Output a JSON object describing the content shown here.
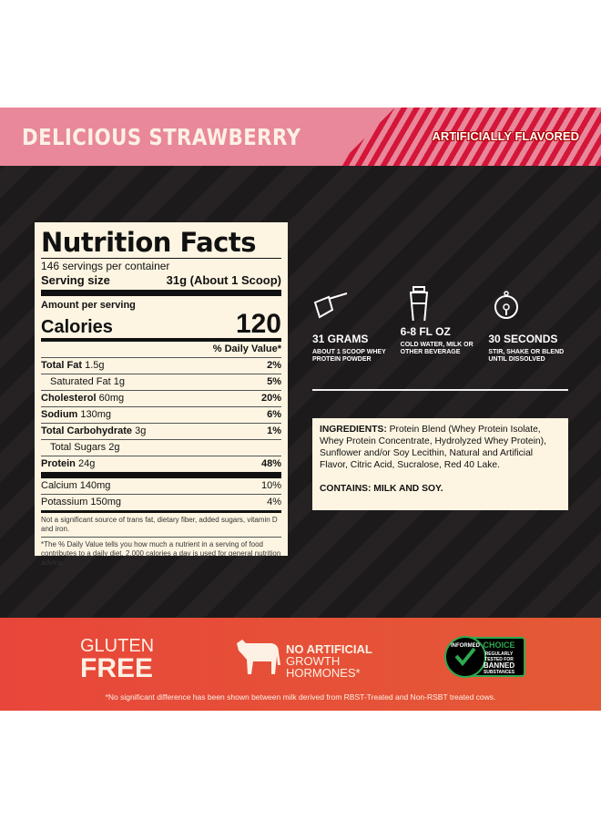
{
  "header": {
    "flavor": "DELICIOUS STRAWBERRY",
    "flavor_note": "ARTIFICIALLY FLAVORED"
  },
  "nutrition": {
    "title": "Nutrition Facts",
    "servings": "146 servings per container",
    "serving_size_label": "Serving size",
    "serving_size_value": "31g (About 1 Scoop)",
    "amount_per_serving": "Amount per serving",
    "calories_label": "Calories",
    "calories_value": "120",
    "dv_header": "% Daily Value*",
    "rows": [
      {
        "name": "Total Fat",
        "amount": "1.5g",
        "dv": "2%",
        "bold": true
      },
      {
        "name": "Saturated Fat",
        "amount": "1g",
        "dv": "5%",
        "bold": false,
        "indent": true
      },
      {
        "name": "Cholesterol",
        "amount": "60mg",
        "dv": "20%",
        "bold": true
      },
      {
        "name": "Sodium",
        "amount": "130mg",
        "dv": "6%",
        "bold": true
      },
      {
        "name": "Total Carbohydrate",
        "amount": "3g",
        "dv": "1%",
        "bold": true
      },
      {
        "name": "Total Sugars",
        "amount": "2g",
        "dv": "",
        "bold": false,
        "indent": true
      },
      {
        "name": "Protein",
        "amount": "24g",
        "dv": "48%",
        "bold": true
      }
    ],
    "minerals": [
      {
        "name": "Calcium 140mg",
        "dv": "10%"
      },
      {
        "name": "Potassium 150mg",
        "dv": "4%"
      }
    ],
    "note1": "Not a significant source of trans fat, dietary fiber, added sugars, vitamin D and iron.",
    "note2": "*The % Daily Value tells you how much a nutrient in a serving of food contributes to a daily diet. 2,000 calories a day is used for general nutrition advice."
  },
  "directions": [
    {
      "icon": "scoop-icon",
      "title": "31 GRAMS",
      "sub": "ABOUT 1 SCOOP WHEY PROTEIN POWDER"
    },
    {
      "icon": "shaker-icon",
      "title": "6-8 FL OZ",
      "sub": "COLD WATER, MILK OR OTHER BEVERAGE"
    },
    {
      "icon": "stopwatch-icon",
      "title": "30 SECONDS",
      "sub": "STIR, SHAKE OR BLEND UNTIL DISSOLVED"
    }
  ],
  "ingredients": {
    "label": "INGREDIENTS:",
    "text": " Protein Blend (Whey Protein Isolate, Whey Protein Concentrate, Hydrolyzed Whey Protein), Sunflower and/or Soy Lecithin, Natural and Artificial Flavor, Citric Acid, Sucralose, Red 40 Lake.",
    "contains": "CONTAINS: MILK AND SOY."
  },
  "badges": {
    "gluten1": "GLUTEN",
    "gluten2": "FREE",
    "nah1": "NO ARTIFICIAL",
    "nah2": "GROWTH",
    "nah3": "HORMONES*",
    "ic_ring": "INFORMED",
    "ic_choice": "CHOICE",
    "ic_sub1": "REGULARLY",
    "ic_sub2": "TESTED FOR",
    "ic_sub3": "BANNED",
    "ic_sub4": "SUBSTANCES"
  },
  "footnote": "*No significant difference has been shown between milk derived from RBST-Treated and Non-RSBT treated cows.",
  "colors": {
    "pink": "#e8889a",
    "stripe": "#d4163a",
    "dark": "#231f20",
    "cream": "#fdf5e2",
    "orange": "#e8463a",
    "green": "#2fa84f"
  }
}
